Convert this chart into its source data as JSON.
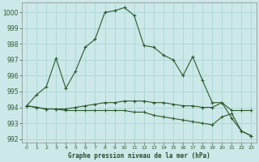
{
  "title": "Graphe pression niveau de la mer (hPa)",
  "background_color": "#cce8e8",
  "grid_color": "#b0d8d8",
  "line_color": "#2d5a2d",
  "xlim": [
    -0.5,
    23.5
  ],
  "ylim": [
    991.8,
    1000.6
  ],
  "yticks": [
    992,
    993,
    994,
    995,
    996,
    997,
    998,
    999,
    1000
  ],
  "xticks": [
    0,
    1,
    2,
    3,
    4,
    5,
    6,
    7,
    8,
    9,
    10,
    11,
    12,
    13,
    14,
    15,
    16,
    17,
    18,
    19,
    20,
    21,
    22,
    23
  ],
  "series1_x": [
    0,
    1,
    2,
    3,
    4,
    5,
    6,
    7,
    8,
    9,
    10,
    11,
    12,
    13,
    14,
    15,
    16,
    17,
    18,
    19,
    20,
    21,
    22,
    23
  ],
  "series1_y": [
    994.1,
    994.8,
    995.3,
    997.1,
    995.2,
    996.3,
    997.8,
    998.3,
    1000.0,
    1000.1,
    1000.3,
    999.8,
    997.9,
    997.8,
    997.3,
    997.0,
    996.0,
    997.2,
    995.7,
    994.3,
    994.3,
    993.3,
    992.5,
    992.2
  ],
  "series2_x": [
    0,
    1,
    2,
    3,
    4,
    5,
    6,
    7,
    8,
    9,
    10,
    11,
    12,
    13,
    14,
    15,
    16,
    17,
    18,
    19,
    20,
    21,
    22,
    23
  ],
  "series2_y": [
    994.1,
    994.0,
    993.9,
    993.9,
    993.9,
    994.0,
    994.1,
    994.2,
    994.3,
    994.3,
    994.4,
    994.4,
    994.4,
    994.3,
    994.3,
    994.2,
    994.1,
    994.1,
    994.0,
    994.0,
    994.3,
    993.8,
    993.8,
    993.8
  ],
  "series3_x": [
    0,
    1,
    2,
    3,
    4,
    5,
    6,
    7,
    8,
    9,
    10,
    11,
    12,
    13,
    14,
    15,
    16,
    17,
    18,
    19,
    20,
    21,
    22,
    23
  ],
  "series3_y": [
    994.1,
    994.0,
    993.9,
    993.9,
    993.8,
    993.8,
    993.8,
    993.8,
    993.8,
    993.8,
    993.8,
    993.7,
    993.7,
    993.5,
    993.4,
    993.3,
    993.2,
    993.1,
    993.0,
    992.9,
    993.4,
    993.6,
    992.5,
    992.2
  ]
}
